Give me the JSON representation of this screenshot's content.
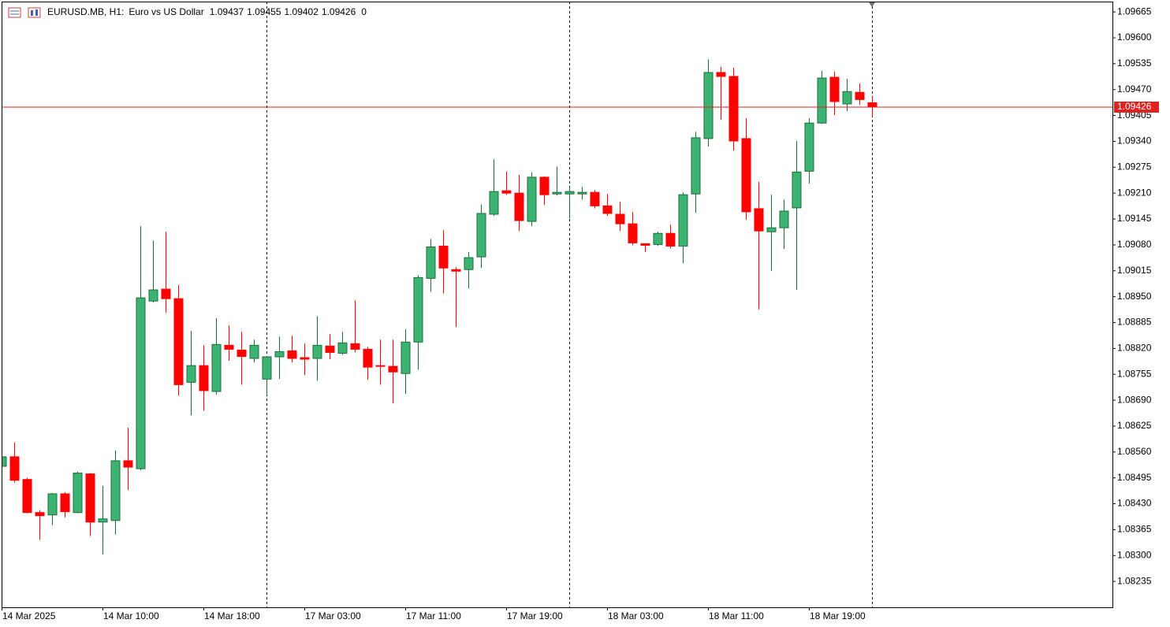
{
  "chart_data": {
    "type": "candlestick",
    "title": "EURUSD.MB, H1:",
    "subtitle": "Euro vs US Dollar",
    "volume": 0,
    "x": [
      "14 Mar 2025",
      null,
      null,
      null,
      null,
      null,
      null,
      null,
      "14 Mar 10:00",
      null,
      null,
      null,
      null,
      null,
      null,
      null,
      "14 Mar 18:00",
      null,
      null,
      null,
      null,
      null,
      null,
      null,
      "17 Mar 03:00",
      null,
      null,
      null,
      null,
      null,
      null,
      null,
      "17 Mar 11:00",
      null,
      null,
      null,
      null,
      null,
      null,
      null,
      "17 Mar 19:00",
      null,
      null,
      null,
      null,
      null,
      null,
      null,
      "18 Mar 03:00",
      null,
      null,
      null,
      null,
      null,
      null,
      null,
      "18 Mar 11:00",
      null,
      null,
      null,
      null,
      null,
      null,
      null,
      "18 Mar 19:00",
      null,
      null,
      null,
      null,
      null
    ],
    "open": [
      1.08524,
      1.08548,
      1.08491,
      1.08408,
      1.08402,
      1.08455,
      1.08408,
      1.08505,
      1.08384,
      1.08388,
      1.08538,
      1.08518,
      1.08939,
      1.08969,
      1.08945,
      1.08735,
      1.08777,
      1.08712,
      1.08828,
      1.08816,
      1.08795,
      1.08743,
      1.08799,
      1.08814,
      1.08797,
      1.08795,
      1.08826,
      1.08808,
      1.08832,
      1.08818,
      1.08777,
      1.08775,
      1.08757,
      1.08836,
      1.08996,
      1.09077,
      1.09018,
      1.09018,
      1.0905,
      1.09157,
      1.09216,
      1.0921,
      1.09139,
      1.0925,
      1.09208,
      1.09208,
      1.09208,
      1.09212,
      1.09178,
      1.09157,
      1.09133,
      1.09083,
      1.09081,
      1.09109,
      1.09077,
      1.09208,
      1.09347,
      1.09513,
      1.09503,
      1.09347,
      1.09171,
      1.09113,
      1.09123,
      1.09173,
      1.09265,
      1.09386,
      1.09501,
      1.09434,
      1.09463,
      1.09437
    ],
    "high": [
      1.08552,
      1.08584,
      1.08495,
      1.08414,
      1.08457,
      1.08459,
      1.08511,
      1.08507,
      1.08475,
      1.08564,
      1.08621,
      1.09127,
      1.09091,
      1.09113,
      1.08979,
      1.08864,
      1.08828,
      1.08896,
      1.08878,
      1.08862,
      1.08842,
      1.08801,
      1.0885,
      1.08852,
      1.08832,
      1.08901,
      1.08856,
      1.08862,
      1.08941,
      1.08824,
      1.08842,
      1.08842,
      1.08868,
      1.09004,
      1.09095,
      1.09117,
      1.09024,
      1.09062,
      1.09182,
      1.09295,
      1.09264,
      1.09256,
      1.09262,
      1.09252,
      1.09277,
      1.09226,
      1.09226,
      1.09218,
      1.09208,
      1.09188,
      1.09163,
      1.09083,
      1.09113,
      1.09131,
      1.09212,
      1.09364,
      1.09546,
      1.09527,
      1.09525,
      1.09398,
      1.09238,
      1.09206,
      1.09194,
      1.09341,
      1.09398,
      1.09517,
      1.09515,
      1.09497,
      1.09485,
      1.09455
    ],
    "low": [
      1.0852,
      1.08483,
      1.08406,
      1.08339,
      1.08376,
      1.08396,
      1.08406,
      1.08349,
      1.08303,
      1.08353,
      1.08465,
      1.08514,
      1.08935,
      1.0891,
      1.08702,
      1.08652,
      1.08664,
      1.08704,
      1.08789,
      1.08729,
      1.08785,
      1.08702,
      1.08743,
      1.08785,
      1.08753,
      1.08739,
      1.08793,
      1.08804,
      1.0881,
      1.08741,
      1.08729,
      1.08682,
      1.08706,
      1.08767,
      1.08962,
      1.08958,
      1.08874,
      1.08971,
      1.09022,
      1.09153,
      1.09206,
      1.09115,
      1.09127,
      1.0918,
      1.09204,
      1.09147,
      1.09194,
      1.09172,
      1.09153,
      1.09115,
      1.09079,
      1.09062,
      1.09077,
      1.09071,
      1.09034,
      1.09161,
      1.09327,
      1.09394,
      1.09317,
      1.09143,
      1.08918,
      1.09014,
      1.0907,
      1.08967,
      1.09234,
      1.09384,
      1.09406,
      1.09416,
      1.09432,
      1.09402
    ],
    "close": [
      1.08548,
      1.08489,
      1.08408,
      1.084,
      1.08455,
      1.0841,
      1.08507,
      1.08384,
      1.08392,
      1.08538,
      1.08522,
      1.08947,
      1.08967,
      1.08945,
      1.08729,
      1.08777,
      1.08714,
      1.0883,
      1.08818,
      1.088,
      1.08828,
      1.08799,
      1.08812,
      1.08795,
      1.08793,
      1.08828,
      1.0881,
      1.08834,
      1.08818,
      1.08773,
      1.08775,
      1.08761,
      1.08836,
      1.08998,
      1.09075,
      1.09022,
      1.09014,
      1.09048,
      1.09159,
      1.09214,
      1.0921,
      1.09141,
      1.0925,
      1.09206,
      1.09212,
      1.09214,
      1.09212,
      1.09178,
      1.09159,
      1.09133,
      1.09085,
      1.09079,
      1.09109,
      1.09077,
      1.09206,
      1.09349,
      1.09513,
      1.09503,
      1.09341,
      1.09163,
      1.09115,
      1.09123,
      1.09165,
      1.09263,
      1.09386,
      1.09499,
      1.0944,
      1.09465,
      1.09445,
      1.09426
    ],
    "up_color": "#3cb371",
    "up_edge": "#1f6b3f",
    "down_color": "#ff0000",
    "last_price_color": "#e0211d",
    "ylim": [
      1.0817,
      1.09691
    ],
    "yticks": [
      {
        "value": 1.08235,
        "label": "1.08235"
      },
      {
        "value": 1.083,
        "label": "1.08300"
      },
      {
        "value": 1.08365,
        "label": "1.08365"
      },
      {
        "value": 1.0843,
        "label": "1.08430"
      },
      {
        "value": 1.08495,
        "label": "1.08495"
      },
      {
        "value": 1.0856,
        "label": "1.08560"
      },
      {
        "value": 1.08625,
        "label": "1.08625"
      },
      {
        "value": 1.0869,
        "label": "1.08690"
      },
      {
        "value": 1.08755,
        "label": "1.08755"
      },
      {
        "value": 1.0882,
        "label": "1.08820"
      },
      {
        "value": 1.08885,
        "label": "1.08885"
      },
      {
        "value": 1.0895,
        "label": "1.08950"
      },
      {
        "value": 1.09015,
        "label": "1.09015"
      },
      {
        "value": 1.0908,
        "label": "1.09080"
      },
      {
        "value": 1.09145,
        "label": "1.09145"
      },
      {
        "value": 1.0921,
        "label": "1.09210"
      },
      {
        "value": 1.09275,
        "label": "1.09275"
      },
      {
        "value": 1.0934,
        "label": "1.09340"
      },
      {
        "value": 1.09405,
        "label": "1.09405"
      },
      {
        "value": 1.0947,
        "label": "1.09470"
      },
      {
        "value": 1.09535,
        "label": "1.09535"
      },
      {
        "value": 1.096,
        "label": "1.09600"
      },
      {
        "value": 1.09665,
        "label": "1.09665"
      }
    ]
  }
}
